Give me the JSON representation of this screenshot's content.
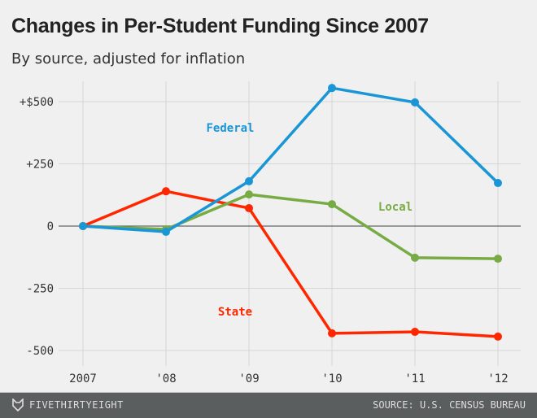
{
  "chart_data": {
    "type": "line",
    "title": "Changes in Per-Student Funding Since 2007",
    "subtitle": "By source, adjusted for inflation",
    "categories": [
      "2007",
      "'08",
      "'09",
      "'10",
      "'11",
      "'12"
    ],
    "yticks": [
      500,
      250,
      0,
      -250,
      -500
    ],
    "ytick_labels": [
      "+$500",
      "+250",
      "0",
      "-250",
      "-500"
    ],
    "ylim": [
      -560,
      570
    ],
    "grid": true,
    "series": [
      {
        "name": "Federal",
        "color": "#1a96d6",
        "values": [
          0,
          -23,
          180,
          555,
          497,
          173
        ]
      },
      {
        "name": "Local",
        "color": "#77ab43",
        "values": [
          0,
          -13,
          127,
          88,
          -127,
          -131
        ]
      },
      {
        "name": "State",
        "color": "#ff2700",
        "values": [
          0,
          140,
          72,
          -431,
          -425,
          -444
        ]
      }
    ]
  },
  "footer": {
    "brand": "FIVETHIRTYEIGHT",
    "source": "SOURCE: U.S. CENSUS BUREAU"
  }
}
